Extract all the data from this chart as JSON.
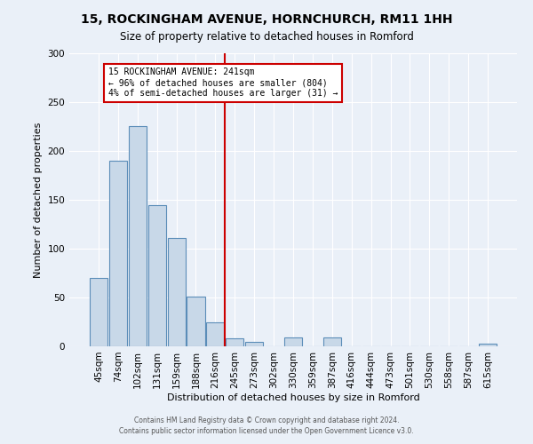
{
  "title": "15, ROCKINGHAM AVENUE, HORNCHURCH, RM11 1HH",
  "subtitle": "Size of property relative to detached houses in Romford",
  "xlabel": "Distribution of detached houses by size in Romford",
  "ylabel": "Number of detached properties",
  "bar_labels": [
    "45sqm",
    "74sqm",
    "102sqm",
    "131sqm",
    "159sqm",
    "188sqm",
    "216sqm",
    "245sqm",
    "273sqm",
    "302sqm",
    "330sqm",
    "359sqm",
    "387sqm",
    "416sqm",
    "444sqm",
    "473sqm",
    "501sqm",
    "530sqm",
    "558sqm",
    "587sqm",
    "615sqm"
  ],
  "bar_values": [
    70,
    190,
    225,
    145,
    111,
    51,
    25,
    8,
    5,
    0,
    9,
    0,
    9,
    0,
    0,
    0,
    0,
    0,
    0,
    0,
    3
  ],
  "bar_color": "#c8d8e8",
  "bar_edge_color": "#5b8db8",
  "vline_color": "#cc0000",
  "annotation_title": "15 ROCKINGHAM AVENUE: 241sqm",
  "annotation_line1": "← 96% of detached houses are smaller (804)",
  "annotation_line2": "4% of semi-detached houses are larger (31) →",
  "annotation_box_color": "#cc0000",
  "ylim": [
    0,
    300
  ],
  "yticks": [
    0,
    50,
    100,
    150,
    200,
    250,
    300
  ],
  "footer1": "Contains HM Land Registry data © Crown copyright and database right 2024.",
  "footer2": "Contains public sector information licensed under the Open Government Licence v3.0.",
  "bg_color": "#eaf0f8",
  "plot_bg_color": "#eaf0f8"
}
